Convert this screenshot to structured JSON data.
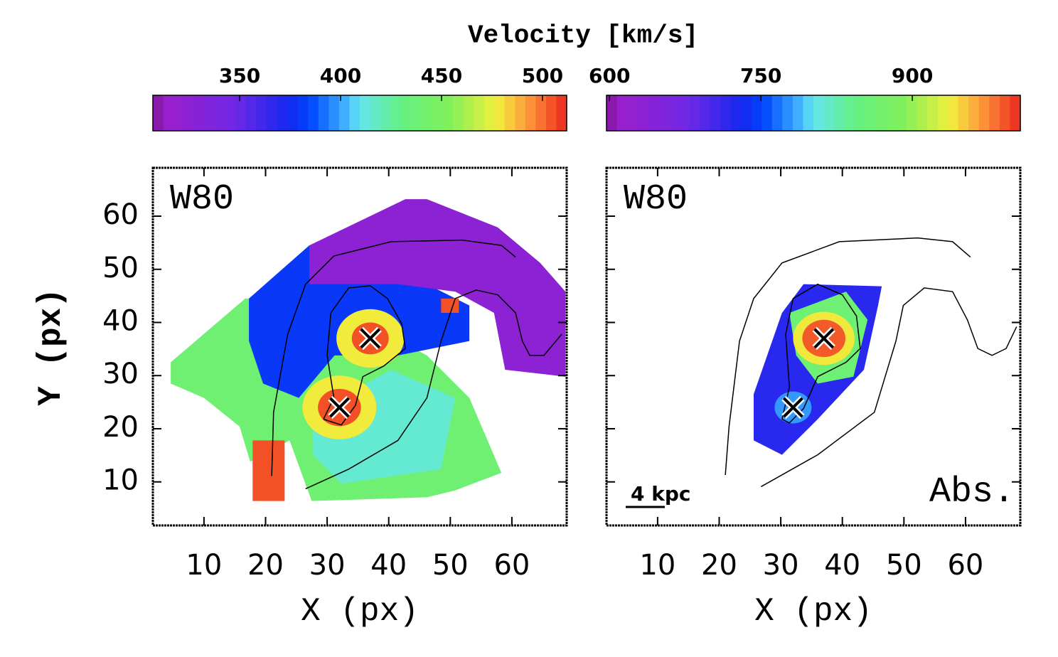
{
  "title": "Velocity [km/s]",
  "chart_data": [
    {
      "type": "map",
      "label": "W80",
      "xlabel": "X (px)",
      "ylabel": "Y (px)",
      "xlim": [
        1.7,
        68.9
      ],
      "ylim": [
        1.8,
        69.1
      ],
      "xticks": [
        10,
        20,
        30,
        40,
        50,
        60
      ],
      "yticks": [
        10,
        20,
        30,
        40,
        50,
        60
      ],
      "colorbar": {
        "lim": [
          307,
          512
        ],
        "ticks": [
          350,
          400,
          450,
          500
        ]
      },
      "patches": [
        {
          "shape": "polygon",
          "value": 440,
          "x": [
            4.6,
            16.7,
            28.8,
            46.2,
            53.1,
            58.3,
            50.8,
            46.2,
            27.5,
            23.9,
            17.5,
            15.8,
            10.0,
            4.6
          ],
          "y": [
            32.5,
            44.5,
            44.5,
            33.8,
            25.8,
            11.7,
            8.4,
            7.1,
            6.4,
            17.8,
            13.8,
            20.4,
            25.8,
            28.5
          ]
        },
        {
          "shape": "polygon",
          "value": 380,
          "x": [
            17.3,
            27.1,
            46.2,
            53.1,
            53.1,
            41.5,
            31.2,
            25.4,
            19.6,
            17.3
          ],
          "y": [
            44.5,
            54.5,
            47.2,
            43.2,
            36.5,
            33.8,
            33.8,
            25.8,
            28.5,
            36.5
          ]
        },
        {
          "shape": "polygon",
          "value": 415,
          "x": [
            27.7,
            40.4,
            50.8,
            48.5,
            32.3,
            27.7
          ],
          "y": [
            23.1,
            31.1,
            25.8,
            12.4,
            9.7,
            15.1
          ]
        },
        {
          "shape": "polygon",
          "value": 325,
          "x": [
            27.1,
            42.7,
            46.2,
            57.7,
            64.6,
            68.7,
            68.7,
            58.9,
            57.1,
            50.8,
            41.5,
            32.3,
            27.1
          ],
          "y": [
            54.5,
            63.2,
            63.2,
            57.9,
            51.2,
            45.8,
            29.8,
            31.1,
            41.8,
            45.8,
            47.2,
            47.2,
            47.2
          ]
        },
        {
          "shape": "polygon",
          "value": 505,
          "x": [
            17.9,
            23.1,
            23.1,
            17.9
          ],
          "y": [
            17.8,
            17.8,
            6.4,
            6.4
          ]
        },
        {
          "shape": "polygon",
          "value": 505,
          "x": [
            48.5,
            51.4,
            51.4,
            48.5
          ],
          "y": [
            44.5,
            44.5,
            41.8,
            41.8
          ]
        },
        {
          "shape": "circle",
          "value": 478,
          "x": [
            37
          ],
          "y": [
            37
          ],
          "r": 5.5
        },
        {
          "shape": "circle",
          "value": 478,
          "x": [
            32
          ],
          "y": [
            24
          ],
          "r": 6
        },
        {
          "shape": "circle",
          "value": 505,
          "x": [
            37
          ],
          "y": [
            37
          ],
          "r": 3
        },
        {
          "shape": "circle",
          "value": 505,
          "x": [
            32
          ],
          "y": [
            24
          ],
          "r": 3.5
        }
      ],
      "contours": [
        {
          "x": [
            21.0,
            21.3,
            23.6,
            26.5,
            31.1,
            40.4,
            51.9,
            58.3,
            60.6
          ],
          "y": [
            11.1,
            23.1,
            37.8,
            47.2,
            52.5,
            55.2,
            55.5,
            54.5,
            52.3
          ]
        },
        {
          "x": [
            26.5,
            33.5,
            41.5,
            46.2,
            48.5,
            50.8,
            54.2,
            57.7,
            60.6,
            61.7,
            62.9,
            65.2,
            68.1
          ],
          "y": [
            8.7,
            12.4,
            17.8,
            25.8,
            36.5,
            44.5,
            46.1,
            45.2,
            41.8,
            36.5,
            33.8,
            33.8,
            37.8
          ]
        },
        {
          "x": [
            29.4,
            31.1,
            30.0,
            30.6,
            33.5,
            37.0,
            39.8,
            42.1,
            42.7,
            39.2,
            35.8,
            34.6,
            32.3,
            29.4
          ],
          "y": [
            21.8,
            25.8,
            33.8,
            41.8,
            46.5,
            46.9,
            44.5,
            39.8,
            35.1,
            31.8,
            29.8,
            24.4,
            20.7,
            21.8
          ]
        }
      ],
      "markers": {
        "x": [
          37,
          32
        ],
        "y": [
          37,
          24
        ]
      }
    },
    {
      "type": "map",
      "label": "W80",
      "xlabel": "X (px)",
      "note": "Abs.",
      "scalebar": "4 kpc",
      "xlim": [
        1.7,
        68.9
      ],
      "ylim": [
        1.8,
        69.1
      ],
      "xticks": [
        10,
        20,
        30,
        40,
        50,
        60
      ],
      "yticks": [
        10,
        20,
        30,
        40,
        50,
        60
      ],
      "colorbar": {
        "lim": [
          597,
          1007
        ],
        "ticks": [
          600,
          750,
          900
        ]
      },
      "patches": [
        {
          "shape": "polygon",
          "value": 720,
          "x": [
            25.6,
            30.2,
            33.7,
            46.4,
            45.8,
            43.5,
            36.0,
            30.2,
            25.6
          ],
          "y": [
            26.5,
            41.8,
            47.2,
            46.8,
            43.2,
            31.1,
            21.8,
            15.1,
            17.8
          ]
        },
        {
          "shape": "polygon",
          "value": 860,
          "x": [
            31.4,
            40.6,
            44.1,
            41.8,
            36.0,
            32.5
          ],
          "y": [
            41.8,
            45.8,
            40.5,
            29.8,
            28.5,
            33.8
          ]
        },
        {
          "shape": "circle",
          "value": 940,
          "x": [
            37
          ],
          "y": [
            37
          ],
          "r": 5
        },
        {
          "shape": "circle",
          "value": 990,
          "x": [
            37
          ],
          "y": [
            37
          ],
          "r": 3.5
        },
        {
          "shape": "circle",
          "value": 780,
          "x": [
            32
          ],
          "y": [
            24
          ],
          "r": 3
        }
      ],
      "contours": [
        {
          "x": [
            21.0,
            21.6,
            23.3,
            25.6,
            30.2,
            39.5,
            52.2,
            57.9,
            60.8
          ],
          "y": [
            11.3,
            20.4,
            36.5,
            44.5,
            51.2,
            55.2,
            55.9,
            55.2,
            52.3
          ]
        },
        {
          "x": [
            26.8,
            36.0,
            45.2,
            48.7,
            49.9,
            53.3,
            57.9,
            60.3,
            62.0,
            64.3,
            66.6,
            68.3
          ],
          "y": [
            9.1,
            15.1,
            23.1,
            36.5,
            43.2,
            46.5,
            45.8,
            40.5,
            35.1,
            33.8,
            35.1,
            39.2
          ]
        },
        {
          "x": [
            30.2,
            31.4,
            30.8,
            32.0,
            36.0,
            40.0,
            42.3,
            42.9,
            40.6,
            36.0,
            33.7,
            31.4,
            30.2
          ],
          "y": [
            21.8,
            27.8,
            37.8,
            44.5,
            47.2,
            45.2,
            41.2,
            35.1,
            32.5,
            29.8,
            23.8,
            21.1,
            21.8
          ]
        }
      ],
      "markers": {
        "x": [
          37,
          32
        ],
        "y": [
          37,
          24
        ]
      }
    }
  ]
}
